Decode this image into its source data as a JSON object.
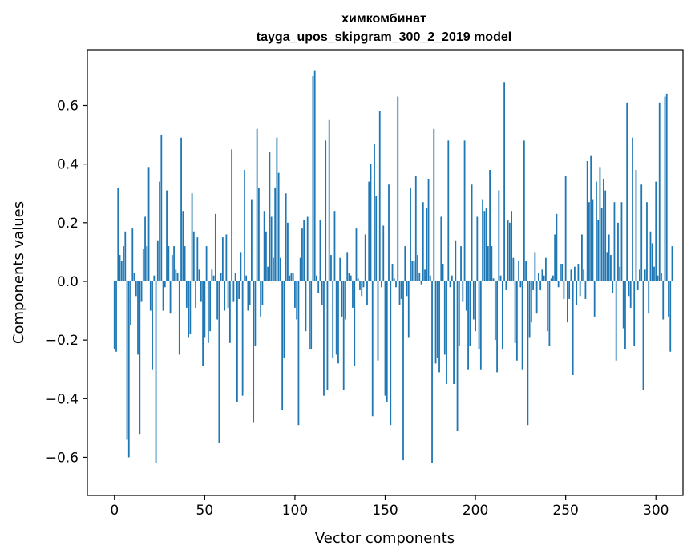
{
  "chart_data": {
    "type": "bar",
    "title": "химкомбинат",
    "subtitle": "tayga_upos_skipgram_300_2_2019 model",
    "xlabel": "Vector components",
    "ylabel": "Components values",
    "xlim": [
      -15,
      315
    ],
    "ylim": [
      -0.73,
      0.79
    ],
    "xticks": [
      0,
      50,
      100,
      150,
      200,
      250,
      300
    ],
    "xtick_labels": [
      "0",
      "50",
      "100",
      "150",
      "200",
      "250",
      "300"
    ],
    "yticks": [
      -0.6,
      -0.4,
      -0.2,
      0.0,
      0.2,
      0.4,
      0.6
    ],
    "ytick_labels": [
      "−0.6",
      "−0.4",
      "−0.2",
      "0.0",
      "0.2",
      "0.4",
      "0.6"
    ],
    "grid": false,
    "bar_color": "#1f77b4",
    "values": [
      -0.23,
      -0.24,
      0.32,
      0.09,
      0.07,
      0.12,
      0.17,
      -0.54,
      -0.6,
      -0.15,
      0.18,
      0.03,
      -0.05,
      -0.25,
      -0.52,
      -0.07,
      0.11,
      0.22,
      0.12,
      0.39,
      -0.1,
      -0.3,
      0.02,
      -0.62,
      0.14,
      0.34,
      0.5,
      -0.1,
      -0.02,
      0.31,
      0.12,
      -0.11,
      0.09,
      0.12,
      0.04,
      0.03,
      -0.25,
      0.49,
      0.24,
      0.12,
      -0.09,
      -0.19,
      -0.18,
      0.3,
      0.17,
      -0.09,
      0.15,
      0.04,
      -0.07,
      -0.29,
      -0.19,
      0.12,
      -0.21,
      -0.17,
      0.04,
      0.02,
      0.23,
      -0.13,
      -0.55,
      0.03,
      0.15,
      -0.1,
      0.16,
      -0.09,
      -0.21,
      0.45,
      -0.07,
      0.03,
      -0.41,
      -0.06,
      0.1,
      -0.39,
      0.38,
      0.02,
      -0.1,
      -0.08,
      0.28,
      -0.48,
      -0.22,
      0.52,
      0.32,
      -0.12,
      -0.08,
      0.24,
      0.17,
      0.05,
      0.44,
      0.22,
      0.08,
      0.32,
      0.49,
      0.37,
      0.08,
      -0.44,
      -0.26,
      0.3,
      0.2,
      0.02,
      0.03,
      0.03,
      -0.09,
      -0.13,
      -0.49,
      0.08,
      0.18,
      0.21,
      -0.17,
      0.22,
      -0.23,
      -0.23,
      0.7,
      0.72,
      0.02,
      -0.04,
      0.21,
      -0.08,
      -0.39,
      0.48,
      -0.37,
      0.55,
      0.09,
      -0.26,
      0.24,
      -0.25,
      -0.28,
      0.08,
      -0.12,
      -0.37,
      -0.13,
      0.1,
      0.03,
      0.02,
      -0.09,
      -0.29,
      0.18,
      0.01,
      -0.03,
      -0.05,
      -0.02,
      0.16,
      -0.08,
      0.34,
      0.4,
      -0.46,
      0.47,
      0.29,
      -0.27,
      0.58,
      -0.02,
      0.19,
      -0.39,
      -0.41,
      0.33,
      -0.49,
      0.06,
      0.01,
      -0.02,
      0.63,
      -0.08,
      -0.06,
      -0.61,
      0.12,
      -0.05,
      -0.19,
      0.32,
      0.07,
      0.07,
      0.36,
      0.09,
      0.03,
      -0.01,
      0.27,
      0.04,
      0.25,
      0.35,
      0.02,
      -0.62,
      0.52,
      -0.28,
      -0.26,
      -0.31,
      0.22,
      0.06,
      -0.25,
      -0.35,
      0.48,
      -0.02,
      0.02,
      -0.35,
      0.14,
      -0.51,
      -0.22,
      0.12,
      -0.07,
      0.48,
      -0.1,
      -0.3,
      -0.22,
      0.33,
      -0.13,
      -0.17,
      0.22,
      -0.23,
      -0.3,
      0.28,
      0.24,
      0.25,
      0.12,
      0.38,
      0.12,
      0.01,
      -0.2,
      -0.31,
      0.31,
      0.02,
      -0.23,
      0.68,
      -0.03,
      0.21,
      0.2,
      0.24,
      0.08,
      -0.21,
      -0.27,
      0.07,
      -0.02,
      -0.3,
      0.48,
      0.07,
      -0.49,
      -0.19,
      -0.14,
      -0.03,
      0.1,
      -0.11,
      0.03,
      -0.03,
      0.04,
      0.02,
      0.08,
      -0.17,
      -0.22,
      0.01,
      0.02,
      0.16,
      0.23,
      -0.02,
      0.06,
      0.06,
      -0.06,
      0.36,
      -0.14,
      -0.06,
      0.04,
      -0.32,
      0.05,
      -0.08,
      0.06,
      -0.05,
      0.16,
      0.04,
      -0.06,
      0.41,
      0.27,
      0.43,
      0.28,
      -0.12,
      0.34,
      0.21,
      0.39,
      0.25,
      0.35,
      0.31,
      0.1,
      0.16,
      0.09,
      -0.04,
      0.27,
      -0.27,
      0.2,
      0.05,
      0.27,
      -0.16,
      -0.23,
      0.61,
      -0.05,
      -0.09,
      0.49,
      -0.22,
      0.38,
      -0.03,
      0.04,
      0.33,
      -0.37,
      0.04,
      0.27,
      -0.11,
      0.17,
      0.13,
      0.05,
      0.34,
      0.02,
      0.61,
      0.03,
      -0.13,
      0.63,
      0.64,
      -0.12,
      -0.24,
      0.12
    ]
  }
}
